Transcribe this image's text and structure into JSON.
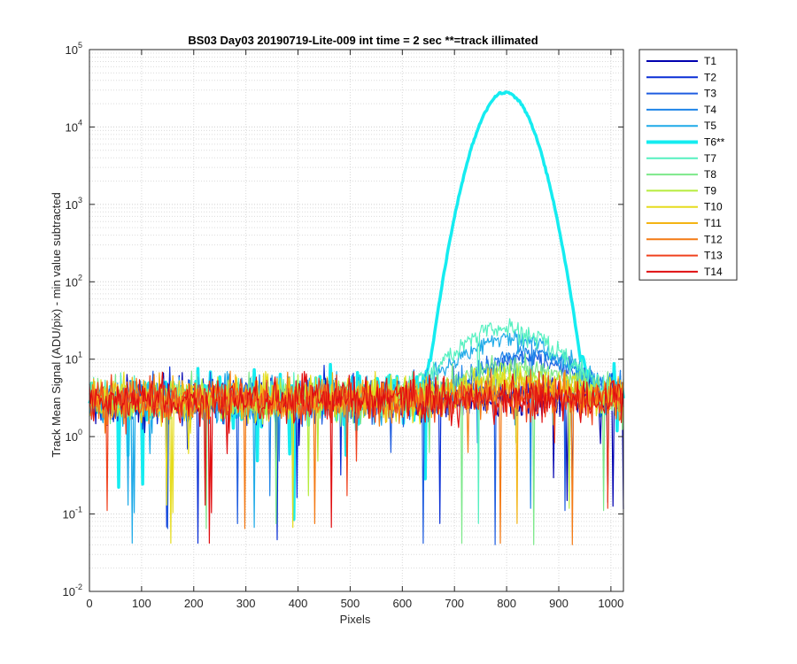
{
  "chart_data": {
    "type": "line",
    "title": "BS03 Day03 20190719-Lite-009 int time = 2 sec    **=track illimated",
    "xlabel": "Pixels",
    "ylabel": "Track Mean Signal (ADU/pix) - min value subtracted",
    "xlim": [
      0,
      1024
    ],
    "ylim": [
      0.01,
      100000
    ],
    "yscale": "log",
    "grid": true,
    "legend_position": "outside-top-right",
    "x_ticks": [
      {
        "value": 0,
        "label": "0"
      },
      {
        "value": 100,
        "label": "100"
      },
      {
        "value": 200,
        "label": "200"
      },
      {
        "value": 300,
        "label": "300"
      },
      {
        "value": 400,
        "label": "400"
      },
      {
        "value": 500,
        "label": "500"
      },
      {
        "value": 600,
        "label": "600"
      },
      {
        "value": 700,
        "label": "700"
      },
      {
        "value": 800,
        "label": "800"
      },
      {
        "value": 900,
        "label": "900"
      },
      {
        "value": 1000,
        "label": "1000"
      }
    ],
    "y_ticks": [
      {
        "value": 0.01,
        "base": "10",
        "exp": "-2"
      },
      {
        "value": 0.1,
        "base": "10",
        "exp": "-1"
      },
      {
        "value": 1,
        "base": "10",
        "exp": "0"
      },
      {
        "value": 10,
        "base": "10",
        "exp": "1"
      },
      {
        "value": 100,
        "base": "10",
        "exp": "2"
      },
      {
        "value": 1000,
        "base": "10",
        "exp": "3"
      },
      {
        "value": 10000,
        "base": "10",
        "exp": "4"
      },
      {
        "value": 100000,
        "base": "10",
        "exp": "5"
      }
    ],
    "noise_baseline": {
      "x_start": 0,
      "x_end": 1024,
      "typical_value": 3,
      "low_dips_to": 0.03
    },
    "series": [
      {
        "name": "T1",
        "color": "#0000b0",
        "peak_x": 850,
        "peak_value": 3,
        "sigma": 80,
        "bold": false
      },
      {
        "name": "T2",
        "color": "#0a2fd6",
        "peak_x": 850,
        "peak_value": 4,
        "sigma": 80,
        "bold": false
      },
      {
        "name": "T3",
        "color": "#1f5de0",
        "peak_x": 840,
        "peak_value": 10,
        "sigma": 75,
        "bold": false
      },
      {
        "name": "T4",
        "color": "#1e84e8",
        "peak_x": 845,
        "peak_value": 12,
        "sigma": 75,
        "bold": false
      },
      {
        "name": "T5",
        "color": "#1faae8",
        "peak_x": 810,
        "peak_value": 18,
        "sigma": 80,
        "bold": false
      },
      {
        "name": "T6**",
        "color": "#15ecf0",
        "peak_x": 798,
        "peak_value": 28000,
        "sigma": 36,
        "bold": true
      },
      {
        "name": "T7",
        "color": "#55f0c0",
        "peak_x": 800,
        "peak_value": 24,
        "sigma": 80,
        "bold": false
      },
      {
        "name": "T8",
        "color": "#7de88a",
        "peak_x": 810,
        "peak_value": 8,
        "sigma": 85,
        "bold": false
      },
      {
        "name": "T9",
        "color": "#b6ec3c",
        "peak_x": 820,
        "peak_value": 6,
        "sigma": 85,
        "bold": false
      },
      {
        "name": "T10",
        "color": "#e6dc1e",
        "peak_x": 820,
        "peak_value": 5,
        "sigma": 85,
        "bold": false
      },
      {
        "name": "T11",
        "color": "#f4b414",
        "peak_x": 820,
        "peak_value": 4,
        "sigma": 90,
        "bold": false
      },
      {
        "name": "T12",
        "color": "#f47a14",
        "peak_x": 820,
        "peak_value": 3.5,
        "sigma": 90,
        "bold": false
      },
      {
        "name": "T13",
        "color": "#f0421e",
        "peak_x": 820,
        "peak_value": 3.2,
        "sigma": 90,
        "bold": false
      },
      {
        "name": "T14",
        "color": "#e00e10",
        "peak_x": 820,
        "peak_value": 3,
        "sigma": 90,
        "bold": false
      }
    ]
  }
}
